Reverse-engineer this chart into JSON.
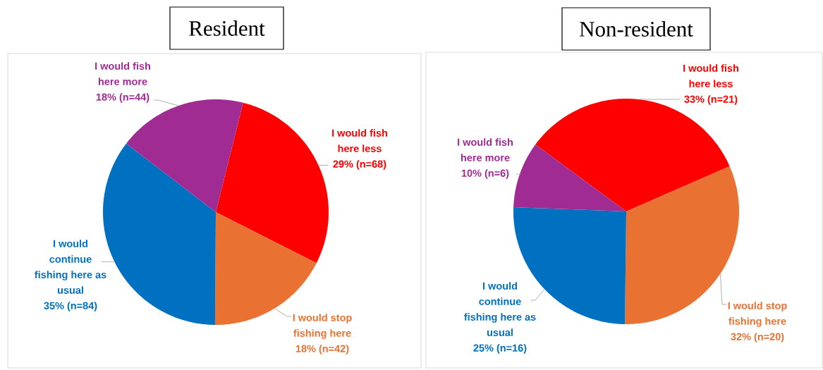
{
  "chart_data": [
    {
      "type": "pie",
      "title": "Resident",
      "categories": [
        "I would fish here less",
        "I would stop fishing here",
        "I would continue fishing here as usual",
        "I would fish here more"
      ],
      "values": [
        68,
        42,
        84,
        44
      ],
      "colors": [
        "#ff0000",
        "#e97132",
        "#0070c0",
        "#a02b93"
      ],
      "value_labels": [
        "29% (n=68)",
        "18% (n=42)",
        "35% (n=84)",
        "18% (n=44)"
      ]
    },
    {
      "type": "pie",
      "title": "Non-resident",
      "categories": [
        "I would fish here less",
        "I would stop fishing here",
        "I would continue fishing here as usual",
        "I would fish here more"
      ],
      "values": [
        21,
        20,
        16,
        6
      ],
      "colors": [
        "#ff0000",
        "#e97132",
        "#0070c0",
        "#a02b93"
      ],
      "value_labels": [
        "33% (n=21)",
        "32% (n=20)",
        "25% (n=16)",
        "10% (n=6)"
      ]
    }
  ]
}
